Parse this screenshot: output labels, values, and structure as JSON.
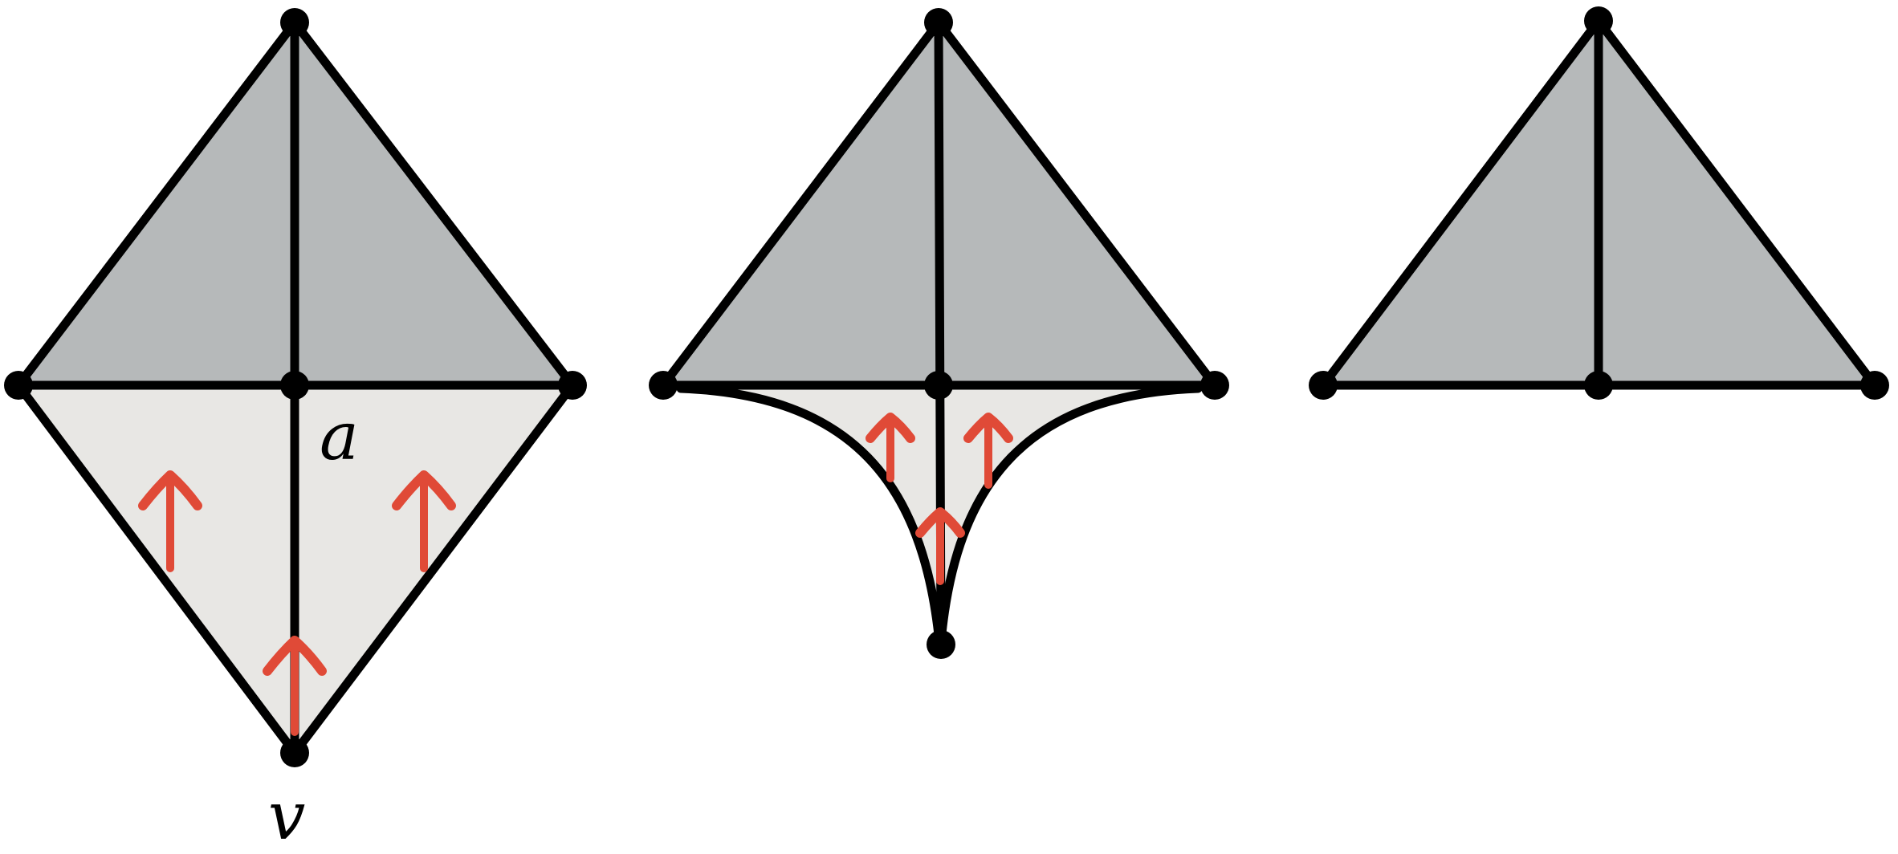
{
  "colors": {
    "dark_face": "#b6b9ba",
    "light_face": "#e8e7e4",
    "edge": "#000000",
    "arrow": "#e04a37"
  },
  "labels": {
    "a": "a",
    "v": "v"
  },
  "panels": [
    {
      "id": "left",
      "arrow_count": 3,
      "label_vertex": "v",
      "label_edge": "a"
    },
    {
      "id": "middle",
      "arrow_count": 3
    },
    {
      "id": "right",
      "arrow_count": 0
    }
  ]
}
